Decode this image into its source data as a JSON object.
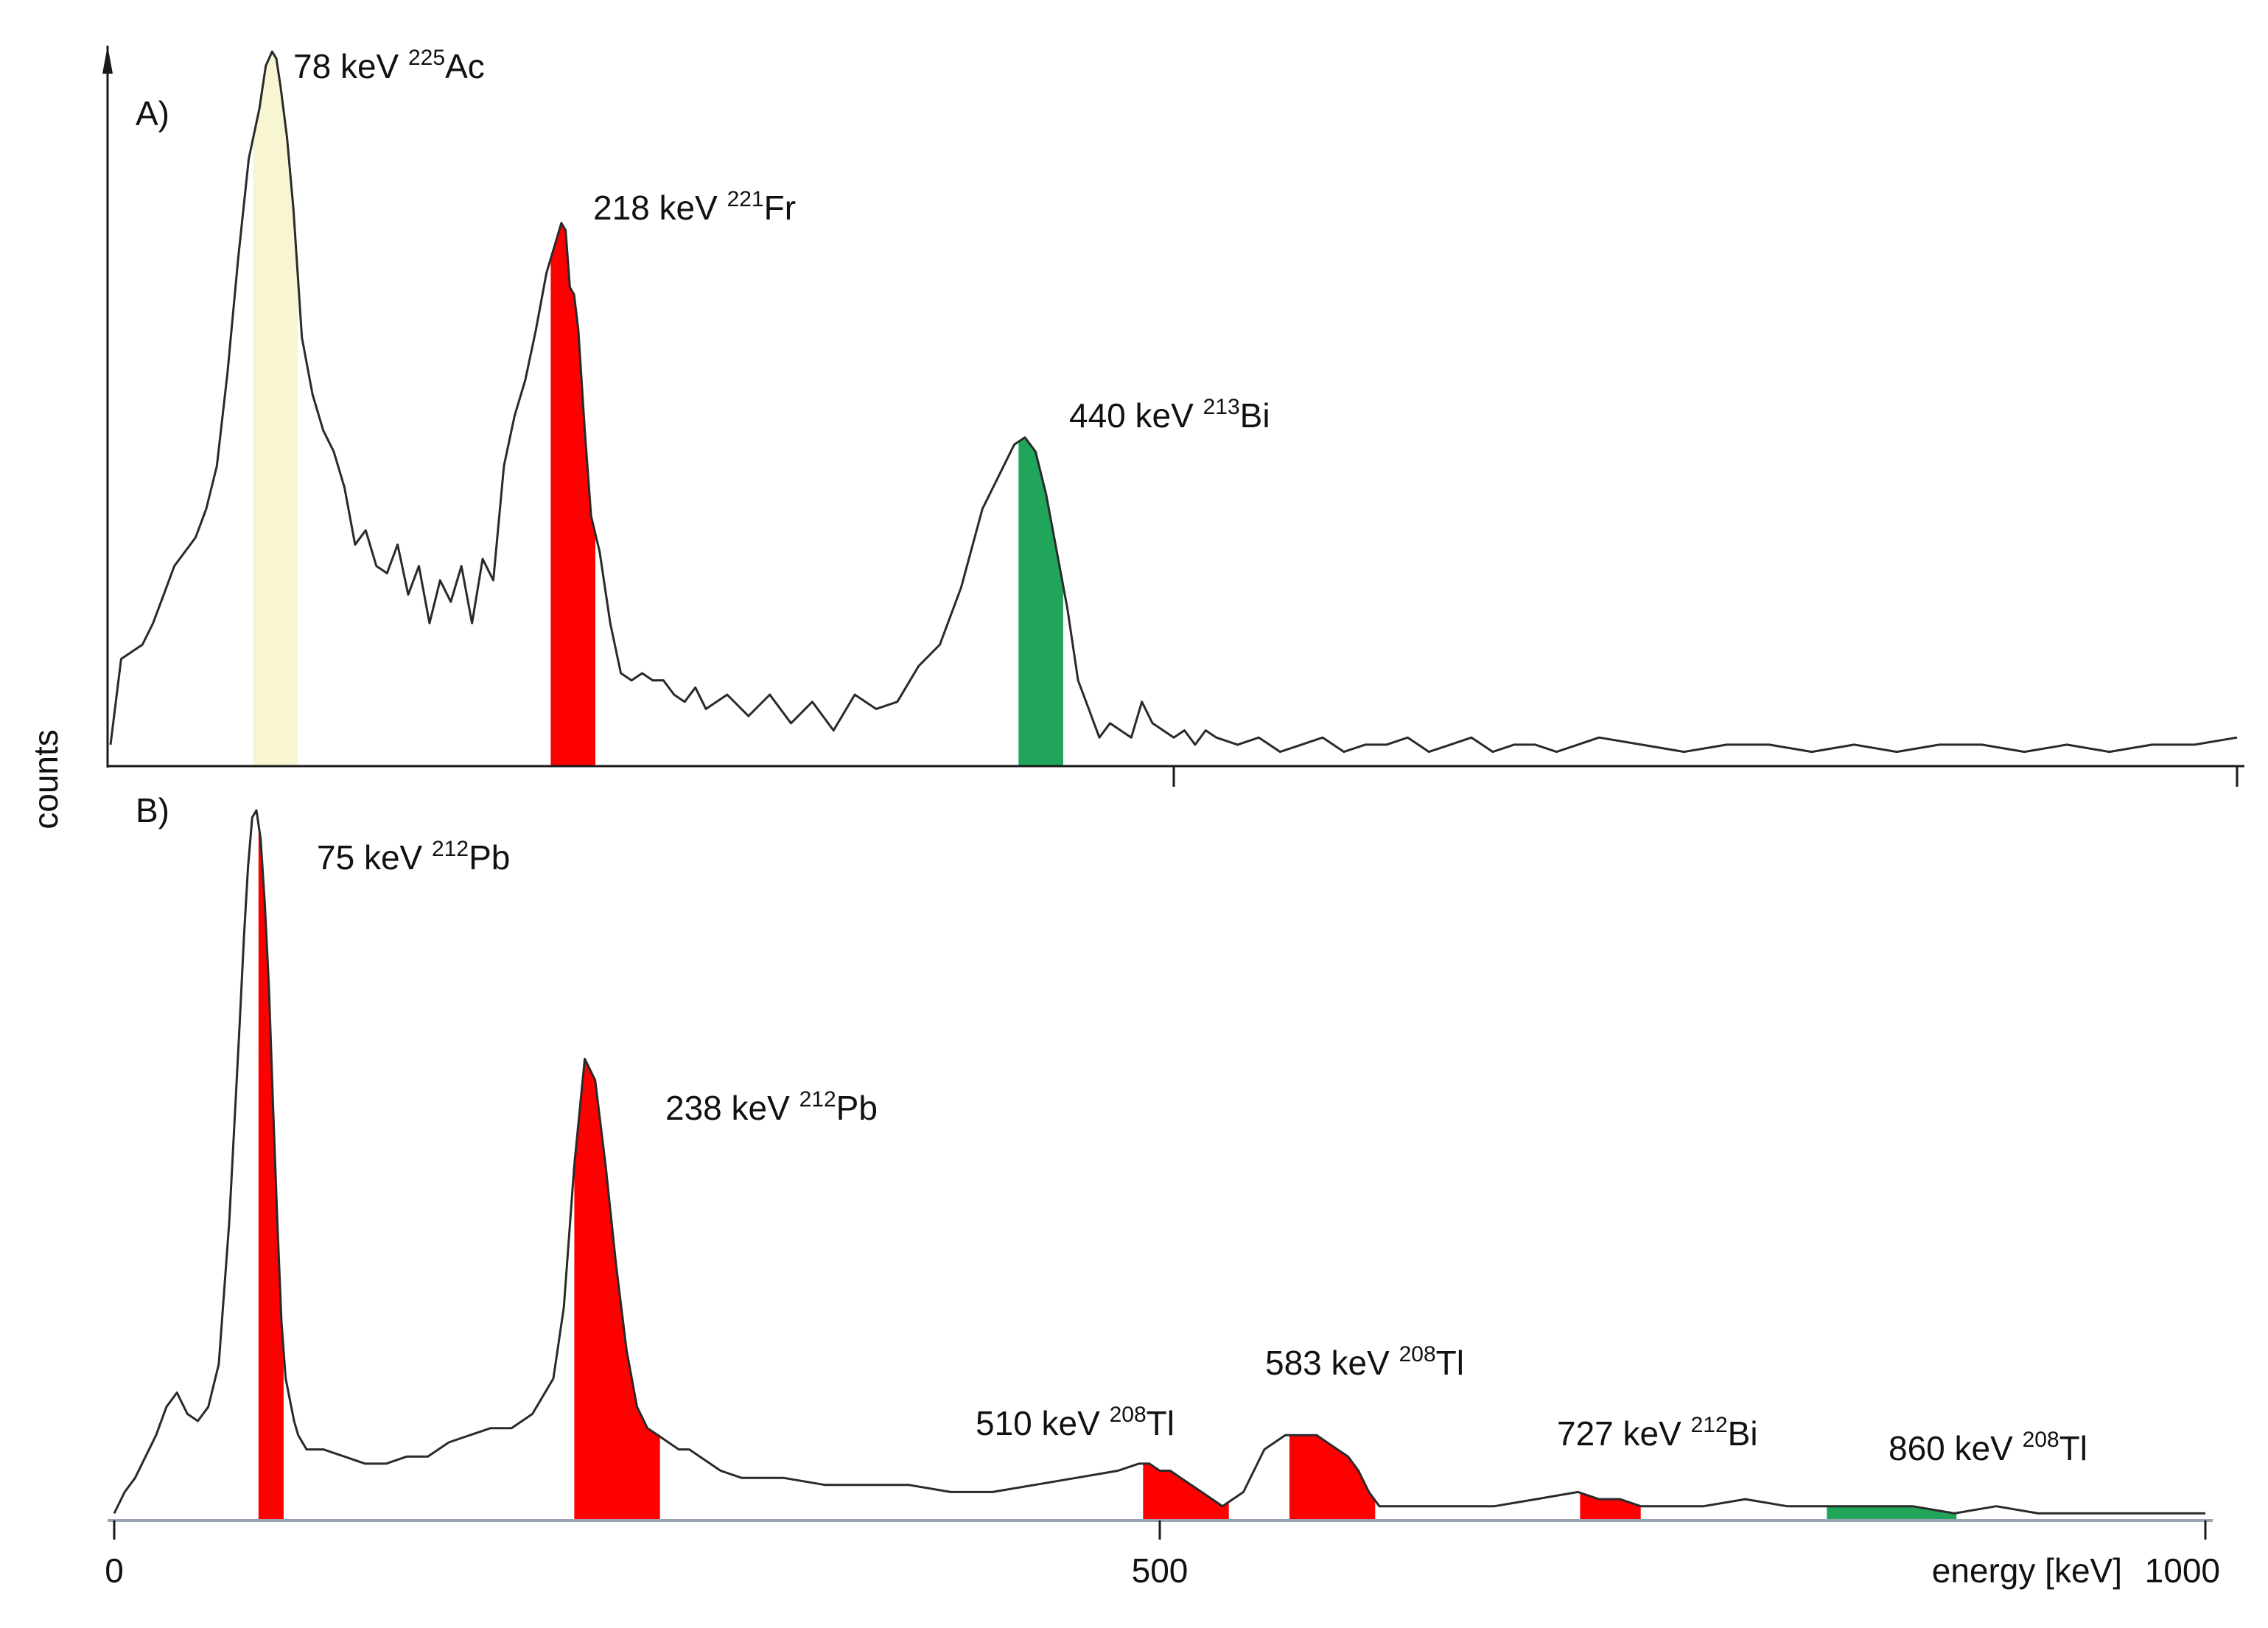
{
  "ylabel": "counts",
  "chart_data": [
    {
      "type": "line",
      "panel_label": "A)",
      "xlabel": "",
      "ylabel": "counts",
      "xlim": [
        0,
        1000
      ],
      "ylim": [
        0,
        100
      ],
      "xticks": [
        500,
        1000
      ],
      "xtick_labels": [
        "",
        ""
      ],
      "grid": false,
      "series": [
        {
          "x": [
            0,
            5,
            10,
            15,
            20,
            25,
            30,
            35,
            40,
            45,
            50,
            55,
            60,
            65,
            70,
            73,
            76,
            78,
            80,
            83,
            86,
            90,
            95,
            100,
            105,
            110,
            115,
            120,
            125,
            130,
            135,
            140,
            145,
            150,
            155,
            160,
            165,
            170,
            175,
            180,
            185,
            190,
            195,
            200,
            205,
            210,
            212,
            214,
            216,
            218,
            220,
            223,
            226,
            230,
            235,
            240,
            245,
            250,
            255,
            260,
            265,
            270,
            275,
            280,
            290,
            300,
            310,
            320,
            330,
            340,
            350,
            360,
            370,
            380,
            390,
            400,
            410,
            420,
            425,
            430,
            435,
            440,
            445,
            450,
            455,
            460,
            465,
            470,
            475,
            480,
            485,
            490,
            495,
            500,
            505,
            510,
            515,
            520,
            530,
            540,
            550,
            560,
            570,
            580,
            590,
            600,
            610,
            620,
            630,
            640,
            650,
            660,
            670,
            680,
            690,
            700,
            720,
            740,
            760,
            780,
            800,
            820,
            840,
            860,
            880,
            900,
            920,
            940,
            960,
            980,
            1000
          ],
          "values": [
            3,
            15,
            16,
            17,
            20,
            24,
            28,
            30,
            32,
            36,
            42,
            55,
            71,
            85,
            92,
            98,
            100,
            99,
            95,
            88,
            78,
            60,
            52,
            47,
            44,
            39,
            31,
            33,
            28,
            27,
            31,
            24,
            28,
            20,
            26,
            23,
            28,
            20,
            29,
            26,
            42,
            49,
            54,
            61,
            69,
            74,
            76,
            75,
            67,
            66,
            61,
            47,
            35,
            30,
            20,
            13,
            12,
            13,
            12,
            12,
            10,
            9,
            11,
            8,
            10,
            7,
            10,
            6,
            9,
            5,
            10,
            8,
            9,
            14,
            17,
            25,
            36,
            42,
            45,
            46,
            44,
            38,
            30,
            22,
            12,
            8,
            4,
            6,
            5,
            4,
            9,
            6,
            5,
            4,
            5,
            3,
            5,
            4,
            3,
            4,
            2,
            3,
            4,
            2,
            3,
            3,
            4,
            2,
            3,
            4,
            2,
            3,
            3,
            2,
            3,
            4,
            3,
            2,
            3,
            3,
            2,
            3,
            2,
            3,
            3,
            2,
            3,
            2,
            3,
            3,
            4
          ]
        }
      ],
      "highlight_bands": [
        {
          "x": [
            67,
            88
          ],
          "color": "#f8f5d2"
        },
        {
          "x": [
            207,
            228
          ],
          "color": "#ff0000"
        },
        {
          "x": [
            427,
            448
          ],
          "color": "#21a55b"
        }
      ],
      "annotations": [
        {
          "energy": "78 keV",
          "isotope_mass": "225",
          "isotope_symbol": "Ac"
        },
        {
          "energy": "218 keV",
          "isotope_mass": "221",
          "isotope_symbol": "Fr"
        },
        {
          "energy": "440 keV",
          "isotope_mass": "213",
          "isotope_symbol": "Bi"
        }
      ]
    },
    {
      "type": "line",
      "panel_label": "B)",
      "xlabel": "energy [keV]",
      "ylabel": "counts",
      "xlim": [
        0,
        1000
      ],
      "ylim": [
        0,
        100
      ],
      "xticks": [
        0,
        500,
        1000
      ],
      "xtick_labels": [
        "0",
        "500",
        "1000"
      ],
      "grid": false,
      "series": [
        {
          "x": [
            0,
            5,
            10,
            15,
            20,
            25,
            30,
            35,
            40,
            45,
            50,
            55,
            60,
            62,
            64,
            66,
            68,
            70,
            72,
            74,
            76,
            78,
            80,
            82,
            84,
            86,
            88,
            90,
            92,
            95,
            100,
            110,
            120,
            130,
            140,
            150,
            160,
            170,
            180,
            190,
            200,
            210,
            215,
            220,
            225,
            230,
            235,
            240,
            245,
            250,
            255,
            260,
            265,
            270,
            275,
            280,
            285,
            290,
            300,
            320,
            340,
            360,
            380,
            400,
            420,
            440,
            460,
            480,
            490,
            495,
            500,
            505,
            510,
            520,
            530,
            540,
            550,
            560,
            570,
            575,
            580,
            585,
            590,
            595,
            600,
            605,
            610,
            615,
            620,
            640,
            660,
            680,
            700,
            710,
            720,
            730,
            740,
            760,
            780,
            800,
            820,
            840,
            860,
            880,
            900,
            920,
            940,
            960,
            980,
            1000
          ],
          "values": [
            1,
            4,
            6,
            9,
            12,
            16,
            18,
            15,
            14,
            16,
            22,
            42,
            70,
            82,
            92,
            99,
            100,
            96,
            87,
            75,
            58,
            42,
            28,
            20,
            17,
            14,
            12,
            11,
            10,
            10,
            10,
            9,
            8,
            8,
            9,
            9,
            11,
            12,
            13,
            13,
            15,
            20,
            30,
            50,
            65,
            62,
            50,
            36,
            24,
            16,
            13,
            12,
            11,
            10,
            10,
            9,
            8,
            7,
            6,
            6,
            5,
            5,
            5,
            4,
            4,
            5,
            6,
            7,
            8,
            8,
            7,
            7,
            6,
            4,
            2,
            4,
            10,
            12,
            12,
            12,
            11,
            10,
            9,
            7,
            4,
            2,
            2,
            2,
            2,
            2,
            2,
            3,
            4,
            3,
            3,
            2,
            2,
            2,
            3,
            2,
            2,
            2,
            2,
            1,
            2,
            1,
            1,
            1,
            1,
            1
          ]
        }
      ],
      "highlight_bands": [
        {
          "x": [
            69,
            81
          ],
          "color": "#ff0000"
        },
        {
          "x": [
            220,
            261
          ],
          "color": "#ff0000"
        },
        {
          "x": [
            492,
            533
          ],
          "color": "#ff0000"
        },
        {
          "x": [
            562,
            603
          ],
          "color": "#ff0000"
        },
        {
          "x": [
            701,
            730
          ],
          "color": "#ff0000"
        },
        {
          "x": [
            819,
            881
          ],
          "color": "#21a55b"
        }
      ],
      "annotations": [
        {
          "energy": "75 keV",
          "isotope_mass": "212",
          "isotope_symbol": "Pb"
        },
        {
          "energy": "238 keV",
          "isotope_mass": "212",
          "isotope_symbol": "Pb"
        },
        {
          "energy": "510 keV",
          "isotope_mass": "208",
          "isotope_symbol": "Tl"
        },
        {
          "energy": "583 keV",
          "isotope_mass": "208",
          "isotope_symbol": "Tl"
        },
        {
          "energy": "727 keV",
          "isotope_mass": "212",
          "isotope_symbol": "Bi"
        },
        {
          "energy": "860 keV",
          "isotope_mass": "208",
          "isotope_symbol": "Tl"
        }
      ]
    }
  ]
}
